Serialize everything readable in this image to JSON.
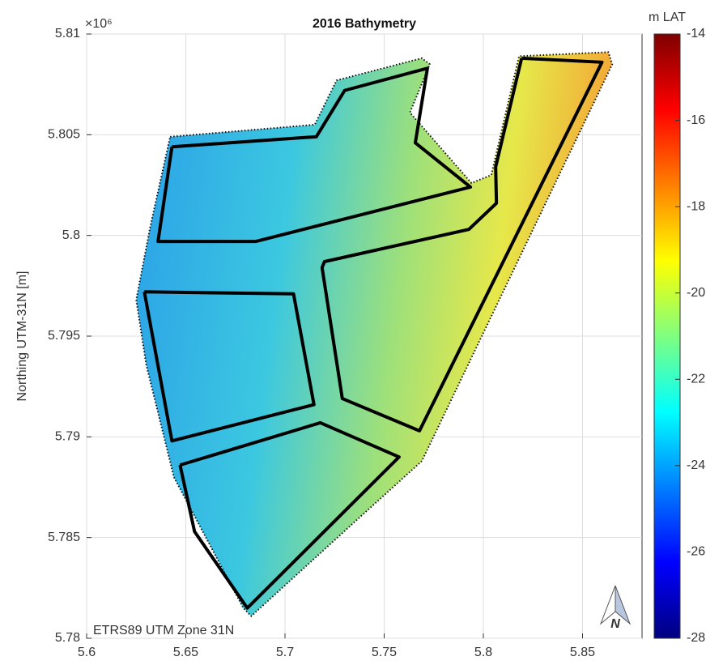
{
  "chart_data": {
    "type": "map",
    "title": "2016 Bathymetry",
    "ylabel": "Northing UTM-31N [m]",
    "y_exponent_label": "×10⁶",
    "annotation": "ETRS89 UTM Zone 31N",
    "north_arrow_label": "N",
    "xlim": [
      5.6,
      5.88
    ],
    "ylim": [
      5.78,
      5.81
    ],
    "xticks": [
      5.6,
      5.65,
      5.7,
      5.75,
      5.8,
      5.85
    ],
    "yticks": [
      5.78,
      5.785,
      5.79,
      5.795,
      5.8,
      5.805,
      5.81
    ],
    "grid": true,
    "colorbar_label": "m LAT",
    "clim": [
      -28,
      -14
    ],
    "cticks": [
      -14,
      -16,
      -18,
      -20,
      -22,
      -24,
      -26,
      -28
    ],
    "colormap": [
      "#00007f",
      "#0000ff",
      "#007fff",
      "#00ffff",
      "#7fff7f",
      "#ffff00",
      "#ff7f00",
      "#ff0000",
      "#7f0000"
    ],
    "boundary": {
      "x": [
        5.6421,
        5.715,
        5.726,
        5.769,
        5.773,
        5.763,
        5.794,
        5.804,
        5.818,
        5.863,
        5.865,
        5.769,
        5.732,
        5.683,
        5.679,
        5.644,
        5.63,
        5.625,
        5.632
      ],
      "y": [
        5.8049,
        5.8055,
        5.8077,
        5.8088,
        5.8085,
        5.8061,
        5.8026,
        5.803,
        5.8089,
        5.8091,
        5.8085,
        5.7888,
        5.7855,
        5.7811,
        5.7815,
        5.788,
        5.7936,
        5.7968,
        5.8004
      ]
    },
    "blocks": [
      {
        "x": [
          5.643,
          5.7158,
          5.7301,
          5.7718,
          5.7657,
          5.7935,
          5.6851,
          5.636,
          5.643
        ],
        "y": [
          5.8044,
          5.8049,
          5.8072,
          5.8083,
          5.8046,
          5.8024,
          5.7997,
          5.7997,
          5.8044
        ]
      },
      {
        "x": [
          5.8193,
          5.8598,
          5.7678,
          5.7289,
          5.7187,
          5.7199,
          5.7927,
          5.8066,
          5.8062,
          5.8193
        ],
        "y": [
          5.8088,
          5.8086,
          5.7903,
          5.7919,
          5.7984,
          5.7987,
          5.8003,
          5.8016,
          5.8034,
          5.8088
        ]
      },
      {
        "x": [
          5.6291,
          5.7043,
          5.7146,
          5.643,
          5.6291
        ],
        "y": [
          5.7972,
          5.7971,
          5.7916,
          5.7898,
          5.7972
        ]
      },
      {
        "x": [
          5.6471,
          5.7178,
          5.7575,
          5.681,
          5.6544,
          5.6471
        ],
        "y": [
          5.7886,
          5.7907,
          5.789,
          5.7815,
          5.7853,
          5.7886
        ]
      }
    ]
  }
}
